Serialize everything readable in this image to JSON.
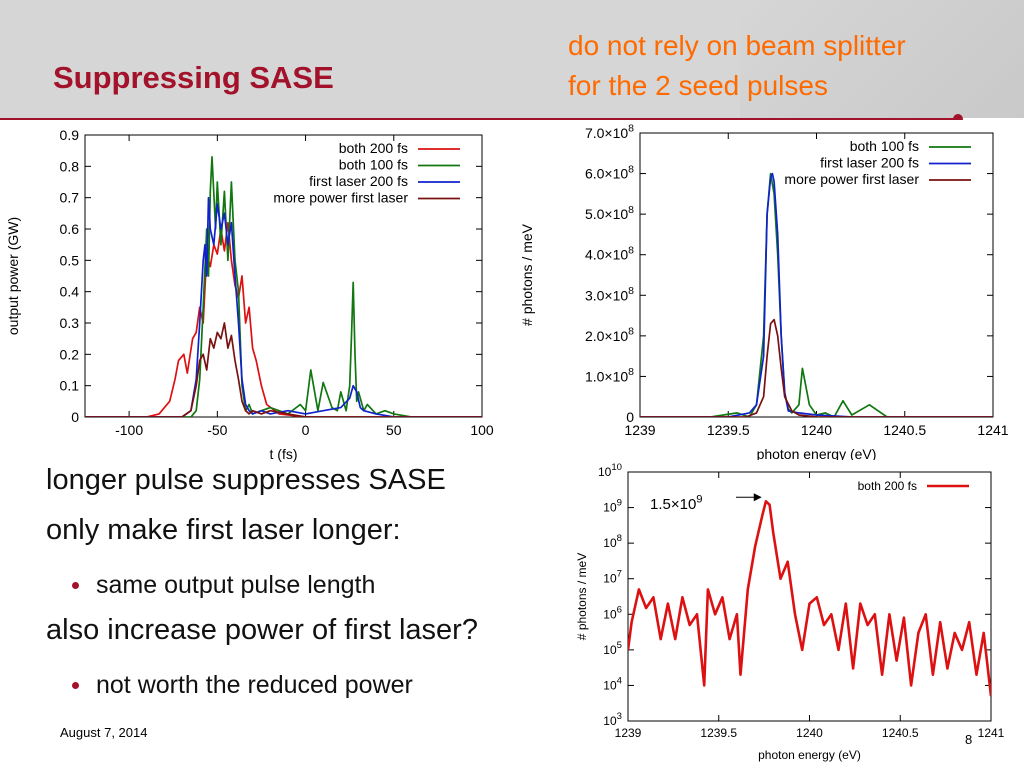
{
  "slide": {
    "title": "Suppressing SASE",
    "note_lines": [
      "do not rely on beam splitter",
      "for the 2 seed pulses"
    ],
    "footer_date": "August 7, 2014",
    "page_number": "8",
    "colors": {
      "title": "#a2122b",
      "note": "#ff6a00",
      "accent": "#a2122b"
    }
  },
  "bullets": [
    {
      "level": 1,
      "text": "longer pulse suppresses SASE"
    },
    {
      "level": 1,
      "text": "only make first laser longer:"
    },
    {
      "level": 2,
      "text": "same output pulse length"
    },
    {
      "level": 1,
      "text": "also increase power of first laser?"
    },
    {
      "level": 2,
      "text": "not worth the reduced power"
    }
  ],
  "chart_data": [
    {
      "type": "line",
      "xlabel": "t (fs)",
      "ylabel": "output power (GW)",
      "xlim": [
        -125,
        100
      ],
      "ylim": [
        0,
        0.9
      ],
      "xticks": [
        -100,
        -50,
        0,
        50,
        100
      ],
      "xtick_labels": [
        "-100",
        "-50",
        "0",
        "50",
        "100"
      ],
      "yticks": [
        0,
        0.1,
        0.2,
        0.3,
        0.4,
        0.5,
        0.6,
        0.7,
        0.8,
        0.9
      ],
      "ytick_labels": [
        "0",
        "0.1",
        "0.2",
        "0.3",
        "0.4",
        "0.5",
        "0.6",
        "0.7",
        "0.8",
        "0.9"
      ],
      "grid": false,
      "legend_position": "top-right",
      "series": [
        {
          "name": "both 200 fs",
          "color": "#dd1111",
          "x": [
            -125,
            -90,
            -83,
            -80,
            -77,
            -74,
            -72,
            -69,
            -67,
            -64,
            -62,
            -60,
            -58,
            -56,
            -54,
            -52,
            -50,
            -48,
            -46,
            -44,
            -42,
            -40,
            -38,
            -36,
            -34,
            -32,
            -30,
            -28,
            -25,
            -22,
            -15,
            0,
            100
          ],
          "y": [
            0,
            0,
            0.01,
            0.03,
            0.05,
            0.12,
            0.18,
            0.2,
            0.14,
            0.25,
            0.27,
            0.35,
            0.3,
            0.52,
            0.48,
            0.55,
            0.52,
            0.6,
            0.53,
            0.62,
            0.5,
            0.42,
            0.38,
            0.45,
            0.3,
            0.35,
            0.22,
            0.18,
            0.1,
            0.04,
            0.01,
            0,
            0
          ]
        },
        {
          "name": "both 100 fs",
          "color": "#117711",
          "x": [
            -125,
            -65,
            -62,
            -60,
            -58,
            -56,
            -55,
            -54,
            -53,
            -51,
            -50,
            -48,
            -46,
            -44,
            -42,
            -40,
            -38,
            -36,
            -34,
            -32,
            -30,
            -25,
            -20,
            -10,
            -3,
            0,
            3,
            7,
            10,
            15,
            18,
            20,
            23,
            25,
            26,
            27,
            28,
            29,
            30,
            33,
            35,
            40,
            45,
            50,
            60,
            100
          ],
          "y": [
            0,
            0,
            0.02,
            0.12,
            0.35,
            0.6,
            0.45,
            0.72,
            0.83,
            0.6,
            0.75,
            0.55,
            0.72,
            0.5,
            0.75,
            0.5,
            0.4,
            0.1,
            0.02,
            0.04,
            0.01,
            0.02,
            0.03,
            0.01,
            0.04,
            0.02,
            0.15,
            0.02,
            0.11,
            0.03,
            0.02,
            0.08,
            0.02,
            0.1,
            0.25,
            0.43,
            0.2,
            0.05,
            0.08,
            0.02,
            0.04,
            0.01,
            0.02,
            0.01,
            0,
            0
          ]
        },
        {
          "name": "first laser 200 fs",
          "color": "#1122cc",
          "x": [
            -125,
            -70,
            -65,
            -62,
            -60,
            -58,
            -57,
            -56,
            -55,
            -54,
            -52,
            -50,
            -48,
            -46,
            -44,
            -42,
            -40,
            -38,
            -36,
            -34,
            -32,
            -30,
            -25,
            -20,
            -10,
            0,
            10,
            20,
            25,
            27,
            29,
            31,
            33,
            40,
            50,
            100
          ],
          "y": [
            0,
            0,
            0.02,
            0.12,
            0.3,
            0.5,
            0.55,
            0.45,
            0.7,
            0.6,
            0.55,
            0.68,
            0.6,
            0.65,
            0.55,
            0.62,
            0.45,
            0.3,
            0.12,
            0.04,
            0.02,
            0.01,
            0.02,
            0.01,
            0.02,
            0.01,
            0.02,
            0.03,
            0.06,
            0.1,
            0.08,
            0.03,
            0.02,
            0.01,
            0,
            0
          ]
        },
        {
          "name": "more power first laser",
          "color": "#7a1111",
          "x": [
            -125,
            -70,
            -65,
            -62,
            -60,
            -58,
            -56,
            -54,
            -52,
            -50,
            -48,
            -46,
            -44,
            -42,
            -40,
            -38,
            -36,
            -34,
            -32,
            -30,
            -25,
            -20,
            -10,
            0,
            100
          ],
          "y": [
            0,
            0,
            0.02,
            0.1,
            0.18,
            0.2,
            0.15,
            0.25,
            0.22,
            0.27,
            0.25,
            0.3,
            0.22,
            0.26,
            0.18,
            0.12,
            0.05,
            0.02,
            0.01,
            0.02,
            0.01,
            0.02,
            0.01,
            0,
            0
          ]
        }
      ]
    },
    {
      "type": "line",
      "xlabel": "photon energy (eV)",
      "ylabel": "# photons / meV",
      "xlim": [
        1239,
        1241
      ],
      "ylim": [
        0,
        700000000
      ],
      "xticks": [
        1239,
        1239.5,
        1240,
        1240.5,
        1241
      ],
      "xtick_labels": [
        "1239",
        "1239.5",
        "1240",
        "1240.5",
        "1241"
      ],
      "yticks": [
        0,
        100000000,
        200000000,
        300000000,
        400000000,
        500000000,
        600000000,
        700000000
      ],
      "ytick_labels": [
        "0",
        "1.0×10^8",
        "2.0×10^8",
        "3.0×10^8",
        "4.0×10^8",
        "5.0×10^8",
        "6.0×10^8",
        "7.0×10^8"
      ],
      "grid": false,
      "legend_position": "top-right",
      "series": [
        {
          "name": "both 100 fs",
          "color": "#117711",
          "x": [
            1239,
            1239.2,
            1239.4,
            1239.55,
            1239.62,
            1239.66,
            1239.7,
            1239.72,
            1239.74,
            1239.76,
            1239.78,
            1239.8,
            1239.82,
            1239.84,
            1239.86,
            1239.9,
            1239.92,
            1239.96,
            1240,
            1240.05,
            1240.1,
            1240.15,
            1240.2,
            1240.3,
            1240.4,
            1240.6,
            1241
          ],
          "y": [
            0,
            0,
            0,
            10000000,
            0,
            30000000,
            200000000,
            500000000,
            600000000,
            550000000,
            400000000,
            200000000,
            60000000,
            20000000,
            10000000,
            30000000,
            120000000,
            30000000,
            5000000,
            10000000,
            0,
            40000000,
            5000000,
            30000000,
            0,
            0,
            0
          ]
        },
        {
          "name": "first laser 200 fs",
          "color": "#1122cc",
          "x": [
            1239,
            1239.5,
            1239.62,
            1239.66,
            1239.7,
            1239.72,
            1239.74,
            1239.75,
            1239.76,
            1239.78,
            1239.8,
            1239.82,
            1239.84,
            1239.9,
            1240,
            1240.2,
            1241
          ],
          "y": [
            0,
            0,
            10000000,
            30000000,
            150000000,
            500000000,
            590000000,
            600000000,
            580000000,
            450000000,
            200000000,
            60000000,
            15000000,
            10000000,
            5000000,
            0,
            0
          ]
        },
        {
          "name": "more power first laser",
          "color": "#7a1111",
          "x": [
            1239,
            1239.6,
            1239.66,
            1239.7,
            1239.72,
            1239.74,
            1239.76,
            1239.78,
            1239.8,
            1239.82,
            1239.86,
            1239.9,
            1240,
            1241
          ],
          "y": [
            0,
            0,
            10000000,
            50000000,
            150000000,
            230000000,
            240000000,
            200000000,
            120000000,
            50000000,
            15000000,
            5000000,
            0,
            0
          ]
        }
      ]
    },
    {
      "type": "line",
      "xlabel": "photon energy (eV)",
      "ylabel": "# photons / meV",
      "yscale": "log",
      "xlim": [
        1239,
        1241
      ],
      "ylim": [
        1000,
        10000000000
      ],
      "xticks": [
        1239,
        1239.5,
        1240,
        1240.5,
        1241
      ],
      "xtick_labels": [
        "1239",
        "1239.5",
        "1240",
        "1240.5",
        "1241"
      ],
      "yticks": [
        1000,
        10000,
        100000,
        1000000,
        10000000,
        100000000,
        1000000000,
        10000000000
      ],
      "ytick_exponents": [
        "3",
        "4",
        "5",
        "6",
        "7",
        "8",
        "9",
        "10"
      ],
      "ytick_base": "10",
      "grid": false,
      "legend_position": "top-right",
      "annotation": {
        "text": "1.5×10^9",
        "x": 1239.77,
        "y": 1500000000
      },
      "series": [
        {
          "name": "both 200 fs",
          "color": "#dd1111",
          "x": [
            1239,
            1239.02,
            1239.06,
            1239.1,
            1239.14,
            1239.18,
            1239.22,
            1239.26,
            1239.3,
            1239.34,
            1239.38,
            1239.42,
            1239.44,
            1239.48,
            1239.52,
            1239.56,
            1239.6,
            1239.62,
            1239.66,
            1239.7,
            1239.74,
            1239.76,
            1239.78,
            1239.8,
            1239.84,
            1239.88,
            1239.92,
            1239.96,
            1240,
            1240.04,
            1240.08,
            1240.12,
            1240.16,
            1240.2,
            1240.24,
            1240.28,
            1240.32,
            1240.36,
            1240.4,
            1240.44,
            1240.48,
            1240.52,
            1240.56,
            1240.6,
            1240.64,
            1240.68,
            1240.72,
            1240.76,
            1240.8,
            1240.84,
            1240.88,
            1240.92,
            1240.96,
            1241
          ],
          "y": [
            100000,
            600000,
            5000000,
            1500000,
            3000000,
            200000,
            2000000,
            200000,
            3000000,
            500000,
            1000000,
            10000,
            5000000,
            1000000,
            3000000,
            200000,
            1000000,
            20000,
            5000000,
            80000000,
            600000000,
            1500000000,
            1200000000,
            200000000,
            10000000,
            30000000,
            1000000,
            100000,
            2000000,
            3000000,
            500000,
            1000000,
            100000,
            2000000,
            30000,
            2000000,
            500000,
            1000000,
            20000,
            1000000,
            50000,
            800000,
            10000,
            300000,
            1000000,
            20000,
            600000,
            30000,
            300000,
            100000,
            600000,
            20000,
            300000,
            5000
          ]
        }
      ]
    }
  ]
}
